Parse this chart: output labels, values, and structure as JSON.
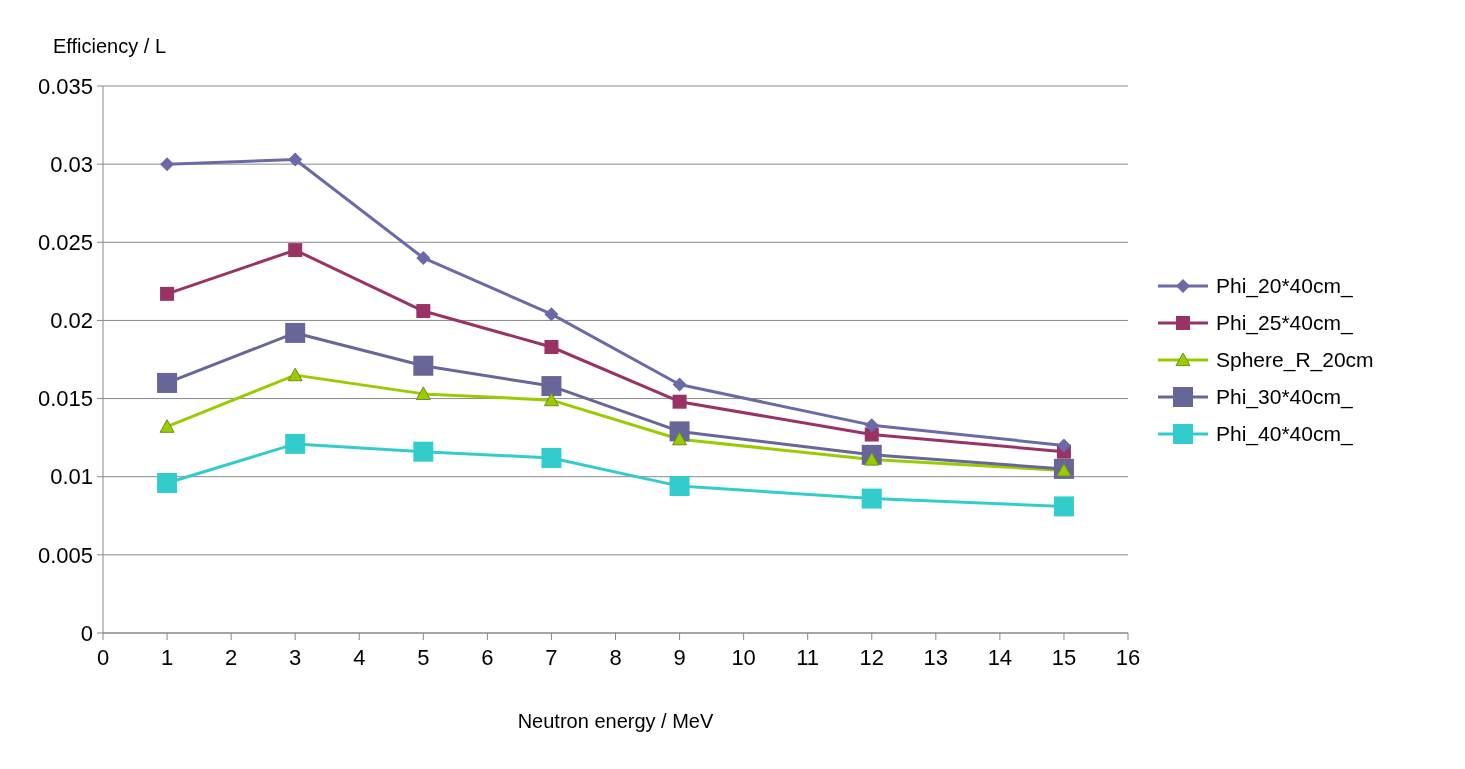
{
  "chart_data": {
    "type": "line",
    "ylabel": "Efficiency / L",
    "xlabel": "Neutron energy / MeV",
    "x": [
      1,
      3,
      5,
      7,
      9,
      12,
      15
    ],
    "series": [
      {
        "name": "Phi_20*40cm_",
        "color": "#6a6aa8",
        "marker": "diamond",
        "values": [
          0.03,
          0.0303,
          0.024,
          0.0204,
          0.0159,
          0.0133,
          0.012
        ]
      },
      {
        "name": "Phi_25*40cm_",
        "color": "#993366",
        "marker": "square",
        "values": [
          0.0217,
          0.0245,
          0.0206,
          0.0183,
          0.0148,
          0.0127,
          0.0116
        ]
      },
      {
        "name": "Sphere_R_20cm",
        "color": "#99cc00",
        "marker": "triangle",
        "values": [
          0.0132,
          0.0165,
          0.0153,
          0.0149,
          0.0124,
          0.0111,
          0.0104
        ]
      },
      {
        "name": "Phi_30*40cm_",
        "color": "#666699",
        "marker": "square",
        "values": [
          0.016,
          0.0192,
          0.0171,
          0.0158,
          0.0129,
          0.0114,
          0.0105
        ]
      },
      {
        "name": "Phi_40*40cm_",
        "color": "#33cccc",
        "marker": "square",
        "values": [
          0.0096,
          0.0121,
          0.0116,
          0.0112,
          0.0094,
          0.0086,
          0.0081
        ]
      }
    ],
    "xlim": [
      0,
      16
    ],
    "xticks": [
      0,
      1,
      2,
      3,
      4,
      5,
      6,
      7,
      8,
      9,
      10,
      11,
      12,
      13,
      14,
      15,
      16
    ],
    "ylim": [
      0,
      0.035
    ],
    "yticks": [
      0,
      0.005,
      0.01,
      0.015,
      0.02,
      0.025,
      0.03,
      0.035
    ],
    "grid": "y",
    "legend": "right"
  }
}
